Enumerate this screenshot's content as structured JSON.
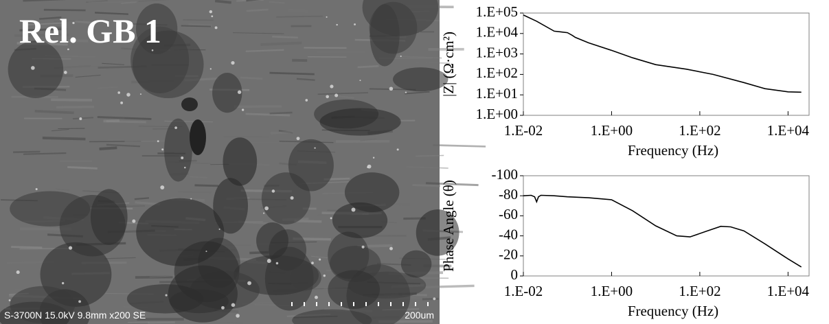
{
  "image": {
    "label": "Rel. GB 1",
    "caption": "S-3700N 15.0kV 9.8mm x200 SE",
    "scale": "200um"
  },
  "chart_data": [
    {
      "type": "line",
      "xscale": "log",
      "yscale": "log",
      "color": "#000000",
      "y_label": "|Z| (Ω·cm²)",
      "x_label": "Frequency (Hz)",
      "x": [
        0.01,
        0.02,
        0.05,
        0.07,
        0.1,
        0.13,
        0.15,
        0.3,
        1,
        3,
        10,
        50,
        200,
        1000,
        3000,
        10000,
        20000
      ],
      "values": [
        80000,
        40000,
        13000,
        12000,
        11000,
        8000,
        6500,
        3500,
        1500,
        650,
        300,
        180,
        100,
        40,
        20,
        14,
        13.5
      ],
      "xlim": [
        0.01,
        30000
      ],
      "ylim": [
        1,
        100000
      ],
      "xticks": [
        {
          "value": 0.01,
          "label": "1.E-02"
        },
        {
          "value": 1,
          "label": "1.E+00"
        },
        {
          "value": 100,
          "label": "1.E+02"
        },
        {
          "value": 10000,
          "label": "1.E+04"
        }
      ],
      "yticks": [
        {
          "value": 1,
          "label": "1.E+00"
        },
        {
          "value": 10,
          "label": "1.E+01"
        },
        {
          "value": 100,
          "label": "1.E+02"
        },
        {
          "value": 1000,
          "label": "1.E+03"
        },
        {
          "value": 10000,
          "label": "1.E+04"
        },
        {
          "value": 100000,
          "label": "1.E+05"
        }
      ]
    },
    {
      "type": "line",
      "xscale": "log",
      "yscale": "linear",
      "color": "#000000",
      "y_label": "Phase Angle (θ)",
      "x_label": "Frequency (Hz)",
      "x": [
        0.01,
        0.015,
        0.018,
        0.02,
        0.022,
        0.025,
        0.05,
        0.1,
        0.3,
        1,
        3,
        10,
        30,
        60,
        150,
        300,
        500,
        1000,
        3000,
        10000,
        20000
      ],
      "values": [
        -80,
        -80.5,
        -79,
        -74,
        -79,
        -80.5,
        -80,
        -79,
        -78,
        -76,
        -65,
        -50,
        -40,
        -39,
        -45,
        -49.5,
        -49,
        -45,
        -32,
        -17,
        -9
      ],
      "xlim": [
        0.01,
        30000
      ],
      "ylim": [
        0,
        -100
      ],
      "xticks": [
        {
          "value": 0.01,
          "label": "1.E-02"
        },
        {
          "value": 1,
          "label": "1.E+00"
        },
        {
          "value": 100,
          "label": "1.E+02"
        },
        {
          "value": 10000,
          "label": "1.E+04"
        }
      ],
      "yticks": [
        0,
        -20,
        -40,
        -60,
        -80,
        -100
      ]
    }
  ]
}
